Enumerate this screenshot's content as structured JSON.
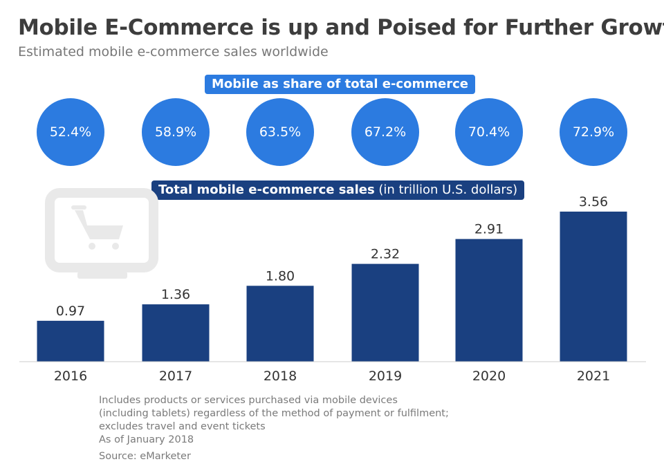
{
  "header": {
    "title": "Mobile E-Commerce is up and Poised for Further Growth",
    "subtitle": "Estimated mobile e-commerce sales worldwide"
  },
  "share_section": {
    "label": "Mobile as share of total e-commerce",
    "values": [
      "52.4%",
      "58.9%",
      "63.5%",
      "67.2%",
      "70.4%",
      "72.9%"
    ]
  },
  "sales_section": {
    "label_bold": "Total mobile e-commerce sales",
    "label_light": " (in trillion U.S. dollars)"
  },
  "chart_data": {
    "type": "bar",
    "categories": [
      "2016",
      "2017",
      "2018",
      "2019",
      "2020",
      "2021"
    ],
    "values": [
      0.97,
      1.36,
      1.8,
      2.32,
      2.91,
      3.56
    ],
    "value_labels": [
      "0.97",
      "1.36",
      "1.80",
      "2.32",
      "2.91",
      "3.56"
    ],
    "share_of_total_ecommerce_pct": [
      52.4,
      58.9,
      63.5,
      67.2,
      70.4,
      72.9
    ],
    "ylim": [
      0,
      4
    ],
    "grid": false,
    "bar_color": "#1a4080",
    "decorative_icon": "shopping-cart-monitor-icon"
  },
  "footer": {
    "notes": [
      "Includes products or services purchased via mobile devices",
      "(including tablets) regardless of the method of payment or fulfilment;",
      "excludes travel and event tickets",
      "As of January 2018"
    ],
    "source": "Source: eMarketer"
  },
  "colors": {
    "title": "#3d3d3d",
    "share_blue": "#2c7be0",
    "bar_navy": "#1a4080",
    "icon_gray": "#e9e9e9",
    "axis": "#cccccc"
  }
}
